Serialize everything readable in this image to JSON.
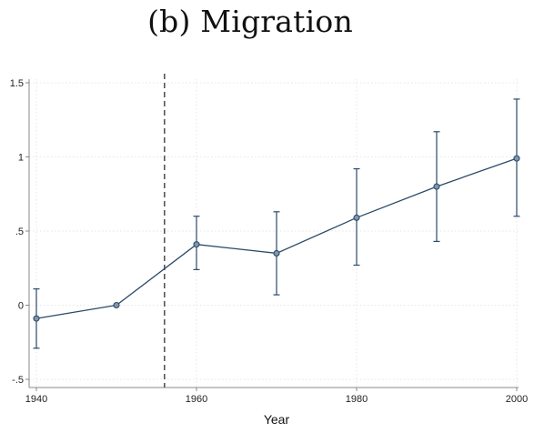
{
  "chart_data": {
    "type": "line",
    "title": "(b) Migration",
    "xlabel": "Year",
    "ylabel": "",
    "x_ticks": [
      1940,
      1960,
      1980,
      2000
    ],
    "x_tick_labels": [
      "1940",
      "1960",
      "1980",
      "2000"
    ],
    "y_ticks": [
      -0.5,
      0,
      0.5,
      1,
      1.5
    ],
    "y_tick_labels": [
      "-.5",
      "0",
      ".5",
      "1",
      "1.5"
    ],
    "xlim": [
      1940,
      2000
    ],
    "ylim": [
      -0.5,
      1.5
    ],
    "grid": true,
    "legend": "none",
    "series": [
      {
        "x": [
          1940,
          1950,
          1960,
          1970,
          1980,
          1990,
          2000
        ],
        "y": [
          -0.09,
          0.0,
          0.41,
          0.35,
          0.59,
          0.8,
          0.99
        ],
        "ci_lower": [
          -0.29,
          0.0,
          0.24,
          0.07,
          0.27,
          0.43,
          0.6
        ],
        "ci_upper": [
          0.11,
          0.0,
          0.6,
          0.63,
          0.92,
          1.17,
          1.39
        ]
      }
    ],
    "reference_line": {
      "x": 1956,
      "style": "dashed"
    },
    "colors": {
      "series": "#2b4a68",
      "marker_fill": "#7f96ad",
      "reference_line": "#555555",
      "grid": "#e6e6e6",
      "axis": "#888888"
    }
  }
}
